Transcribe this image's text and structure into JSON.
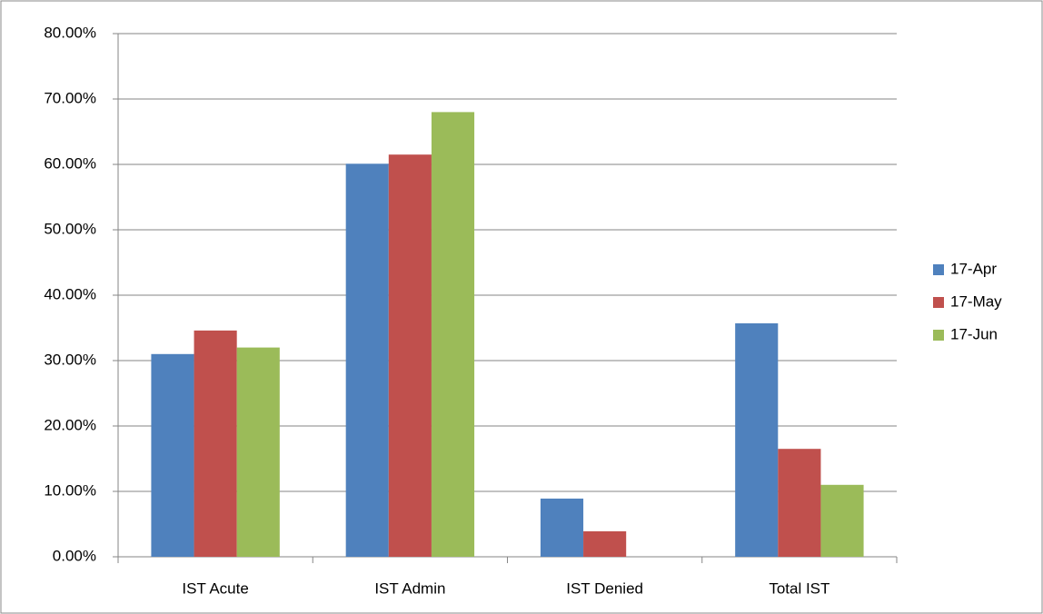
{
  "chart_data": {
    "type": "bar",
    "categories": [
      "IST Acute",
      "IST Admin",
      "IST Denied",
      "Total IST"
    ],
    "series": [
      {
        "name": "17-Apr",
        "color": "#4f81bd",
        "values": [
          31,
          60.1,
          8.9,
          35.7
        ]
      },
      {
        "name": "17-May",
        "color": "#c0504d",
        "values": [
          34.6,
          61.5,
          3.9,
          16.5
        ]
      },
      {
        "name": "17-Jun",
        "color": "#9bbb59",
        "values": [
          32,
          68,
          0,
          11
        ]
      }
    ],
    "ylim": [
      0,
      80
    ],
    "yticks": [
      {
        "value": 0,
        "label": "0.00%"
      },
      {
        "value": 10,
        "label": "10.00%"
      },
      {
        "value": 20,
        "label": "20.00%"
      },
      {
        "value": 30,
        "label": "30.00%"
      },
      {
        "value": 40,
        "label": "40.00%"
      },
      {
        "value": 50,
        "label": "50.00%"
      },
      {
        "value": 60,
        "label": "60.00%"
      },
      {
        "value": 70,
        "label": "70.00%"
      },
      {
        "value": 80,
        "label": "80.00%"
      }
    ],
    "grid": true,
    "legend": "right"
  }
}
